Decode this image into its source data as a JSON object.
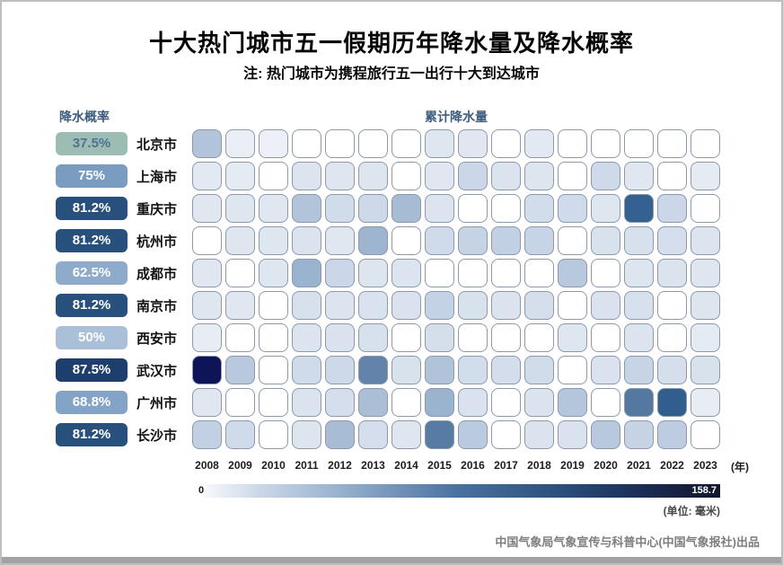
{
  "title": "十大热门城市五一假期历年降水量及降水概率",
  "subtitle": "注: 热门城市为携程旅行五一出行十大到达城市",
  "left_header": "降水概率",
  "map_header": "累计降水量",
  "x_axis_unit": "(年)",
  "legend": {
    "min_label": "0",
    "max_label": "158.7",
    "unit_label": "(单位: 毫米)"
  },
  "footer_credit": "中国气象局气象宣传与科普中心(中国气象报社)出品",
  "colors": {
    "header_text": "#3d5c80",
    "cell_border": "#8d99a8",
    "colormap_stops": [
      [
        0.0,
        "#ffffff"
      ],
      [
        0.08,
        "#dee6f0"
      ],
      [
        0.2,
        "#c9d6e7"
      ],
      [
        0.3,
        "#aec1d7"
      ],
      [
        0.42,
        "#8fabc9"
      ],
      [
        0.55,
        "#5d7ea6"
      ],
      [
        0.7,
        "#33608f"
      ],
      [
        0.85,
        "#1d3068"
      ],
      [
        1.0,
        "#0d1457"
      ]
    ],
    "legend_gradient_stops": [
      [
        0.0,
        "#ffffff"
      ],
      [
        0.12,
        "#ccd8e8"
      ],
      [
        0.3,
        "#8fabc9"
      ],
      [
        0.5,
        "#4a71a0"
      ],
      [
        0.7,
        "#2a4f7c"
      ],
      [
        0.85,
        "#1b2d55"
      ],
      [
        1.0,
        "#11162c"
      ]
    ]
  },
  "chart_data": {
    "type": "heatmap",
    "title": "十大热门城市五一假期历年降水量及降水概率",
    "x": [
      2008,
      2009,
      2010,
      2011,
      2012,
      2013,
      2014,
      2015,
      2016,
      2017,
      2018,
      2019,
      2020,
      2021,
      2022,
      2023
    ],
    "xlabel": "年",
    "value_range": [
      0,
      158.7
    ],
    "unit": "毫米",
    "legend_position": "bottom",
    "rows": [
      {
        "city": "北京市",
        "probability": "37.5%",
        "badge_bg": "#9cbcb4",
        "badge_fg": "#4c7390",
        "values": [
          45,
          8,
          7,
          0,
          0,
          0,
          0,
          13,
          12,
          0,
          11,
          0,
          0,
          0,
          0,
          0
        ]
      },
      {
        "city": "上海市",
        "probability": "75%",
        "badge_bg": "#7b9cc1",
        "badge_fg": "#ffffff",
        "values": [
          11,
          10,
          0,
          15,
          13,
          14,
          0,
          12,
          30,
          16,
          14,
          0,
          27,
          12,
          0,
          10
        ]
      },
      {
        "city": "重庆市",
        "probability": "81.2%",
        "badge_bg": "#27507c",
        "badge_fg": "#ffffff",
        "values": [
          12,
          13,
          12,
          45,
          25,
          28,
          52,
          15,
          0,
          0,
          24,
          26,
          13,
          110,
          30,
          0
        ]
      },
      {
        "city": "杭州市",
        "probability": "81.2%",
        "badge_bg": "#27507c",
        "badge_fg": "#ffffff",
        "values": [
          0,
          13,
          13,
          16,
          12,
          58,
          0,
          26,
          34,
          36,
          33,
          0,
          18,
          19,
          22,
          15
        ]
      },
      {
        "city": "成都市",
        "probability": "62.5%",
        "badge_bg": "#8fabcb",
        "badge_fg": "#ffffff",
        "values": [
          12,
          0,
          13,
          60,
          30,
          14,
          15,
          0,
          0,
          0,
          0,
          42,
          0,
          14,
          16,
          13
        ]
      },
      {
        "city": "南京市",
        "probability": "81.2%",
        "badge_bg": "#27507c",
        "badge_fg": "#ffffff",
        "values": [
          13,
          12,
          0,
          19,
          15,
          17,
          17,
          35,
          18,
          16,
          21,
          0,
          17,
          19,
          0,
          14
        ]
      },
      {
        "city": "西安市",
        "probability": "50%",
        "badge_bg": "#a9c0d8",
        "badge_fg": "#ffffff",
        "values": [
          9,
          0,
          0,
          15,
          17,
          19,
          0,
          21,
          0,
          0,
          0,
          13,
          0,
          15,
          0,
          10
        ]
      },
      {
        "city": "武汉市",
        "probability": "87.5%",
        "badge_bg": "#1e3f6d",
        "badge_fg": "#ffffff",
        "values": [
          158.7,
          42,
          0,
          26,
          28,
          85,
          18,
          46,
          24,
          23,
          25,
          0,
          17,
          33,
          21,
          18
        ]
      },
      {
        "city": "广州市",
        "probability": "68.8%",
        "badge_bg": "#84a4c7",
        "badge_fg": "#ffffff",
        "values": [
          12,
          0,
          0,
          16,
          22,
          50,
          0,
          60,
          17,
          0,
          16,
          44,
          0,
          92,
          112,
          9
        ]
      },
      {
        "city": "长沙市",
        "probability": "81.2%",
        "badge_bg": "#27507c",
        "badge_fg": "#ffffff",
        "values": [
          36,
          26,
          0,
          14,
          51,
          22,
          13,
          90,
          40,
          0,
          16,
          17,
          42,
          34,
          39,
          0
        ]
      }
    ]
  }
}
